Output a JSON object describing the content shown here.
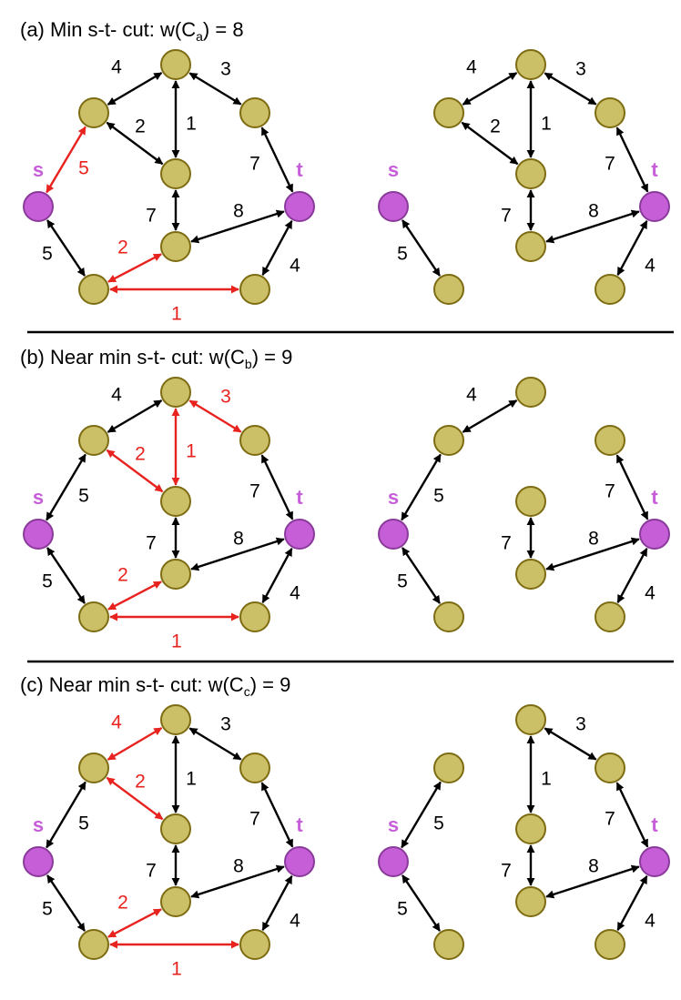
{
  "colors": {
    "node_fill": "#cbc068",
    "node_stroke": "#7d6c12",
    "terminal_fill": "#c65ed8",
    "terminal_stroke": "#8a3b9a",
    "terminal_label": "#c65ed8",
    "edge": "#000000",
    "cut_edge": "#e8231f",
    "divider": "#000000"
  },
  "panels": [
    {
      "id": "a",
      "title": {
        "prefix": "(a)  Min s-t- cut: w(C",
        "sub": "a",
        "suffix": ") = 8"
      },
      "cut": [
        "s-v1",
        "v5-v6",
        "v6-v7"
      ]
    },
    {
      "id": "b",
      "title": {
        "prefix": "(b)  Near min s-t- cut: w(C",
        "sub": "b",
        "suffix": ") = 9"
      },
      "cut": [
        "v0-v2",
        "v0-v4",
        "v1-v4",
        "v5-v6",
        "v6-v7"
      ]
    },
    {
      "id": "c",
      "title": {
        "prefix": "(c)  Near min s-t- cut: w(C",
        "sub": "c",
        "suffix": ") = 9"
      },
      "cut": [
        "v0-v1",
        "v1-v4",
        "v5-v6",
        "v6-v7"
      ]
    }
  ],
  "graph": {
    "nodes": [
      {
        "id": "v0"
      },
      {
        "id": "v1"
      },
      {
        "id": "v2"
      },
      {
        "id": "v4"
      },
      {
        "id": "s",
        "label": "s",
        "terminal": true
      },
      {
        "id": "t",
        "label": "t",
        "terminal": true
      },
      {
        "id": "v5"
      },
      {
        "id": "v6"
      },
      {
        "id": "v7"
      }
    ],
    "edges": [
      {
        "id": "v0-v1",
        "from": "v0",
        "to": "v1",
        "weight": "4"
      },
      {
        "id": "v0-v2",
        "from": "v0",
        "to": "v2",
        "weight": "3"
      },
      {
        "id": "v0-v4",
        "from": "v0",
        "to": "v4",
        "weight": "1"
      },
      {
        "id": "v1-v4",
        "from": "v1",
        "to": "v4",
        "weight": "2"
      },
      {
        "id": "s-v1",
        "from": "s",
        "to": "v1",
        "weight": "5"
      },
      {
        "id": "v2-t",
        "from": "v2",
        "to": "t",
        "weight": "7"
      },
      {
        "id": "v4-v5",
        "from": "v4",
        "to": "v5",
        "weight": "7"
      },
      {
        "id": "v5-t",
        "from": "v5",
        "to": "t",
        "weight": "8"
      },
      {
        "id": "s-v6",
        "from": "s",
        "to": "v6",
        "weight": "5"
      },
      {
        "id": "v5-v6",
        "from": "v5",
        "to": "v6",
        "weight": "2"
      },
      {
        "id": "v6-v7",
        "from": "v6",
        "to": "v7",
        "weight": "1"
      },
      {
        "id": "v7-t",
        "from": "v7",
        "to": "t",
        "weight": "4"
      }
    ]
  }
}
